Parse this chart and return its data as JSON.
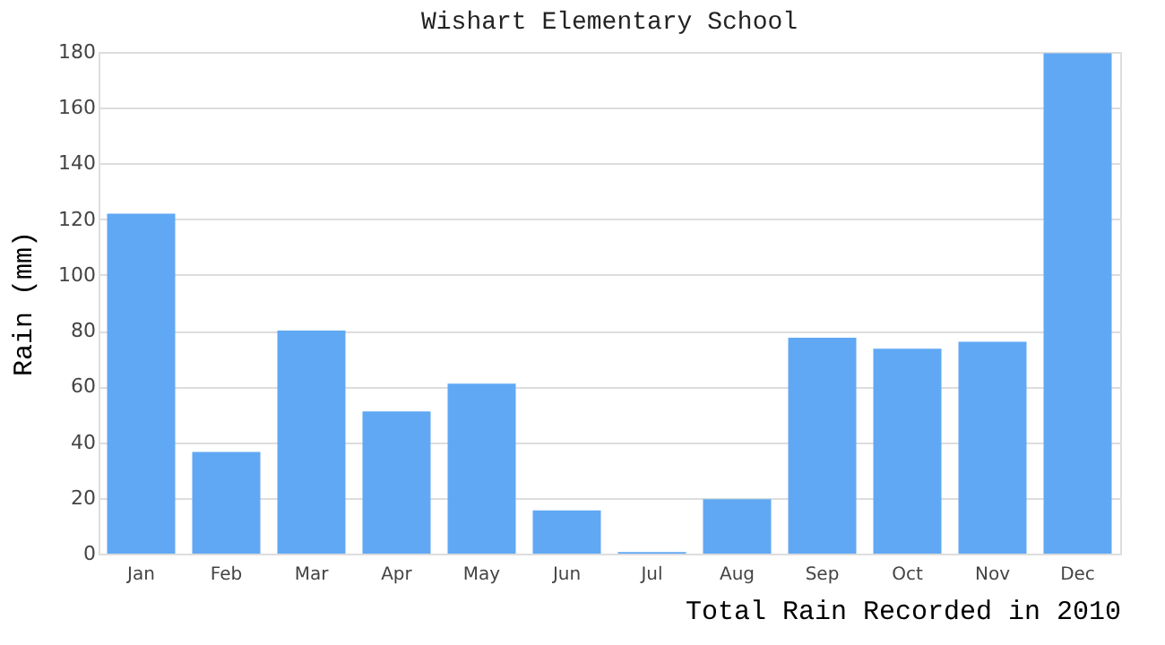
{
  "chart_data": {
    "type": "bar",
    "title": "Wishart Elementary School",
    "xlabel": "Total Rain Recorded in 2010",
    "ylabel": "Rain (mm)",
    "categories": [
      "Jan",
      "Feb",
      "Mar",
      "Apr",
      "May",
      "Jun",
      "Jul",
      "Aug",
      "Sep",
      "Oct",
      "Nov",
      "Dec"
    ],
    "values": [
      122,
      36.5,
      80,
      51,
      61,
      15.5,
      0.6,
      19.5,
      77.5,
      73.5,
      76,
      179.5
    ],
    "color": "#60a8f4",
    "ylim": [
      0,
      180
    ],
    "yticks": [
      0,
      20,
      40,
      60,
      80,
      100,
      120,
      140,
      160,
      180
    ],
    "grid": "y"
  }
}
